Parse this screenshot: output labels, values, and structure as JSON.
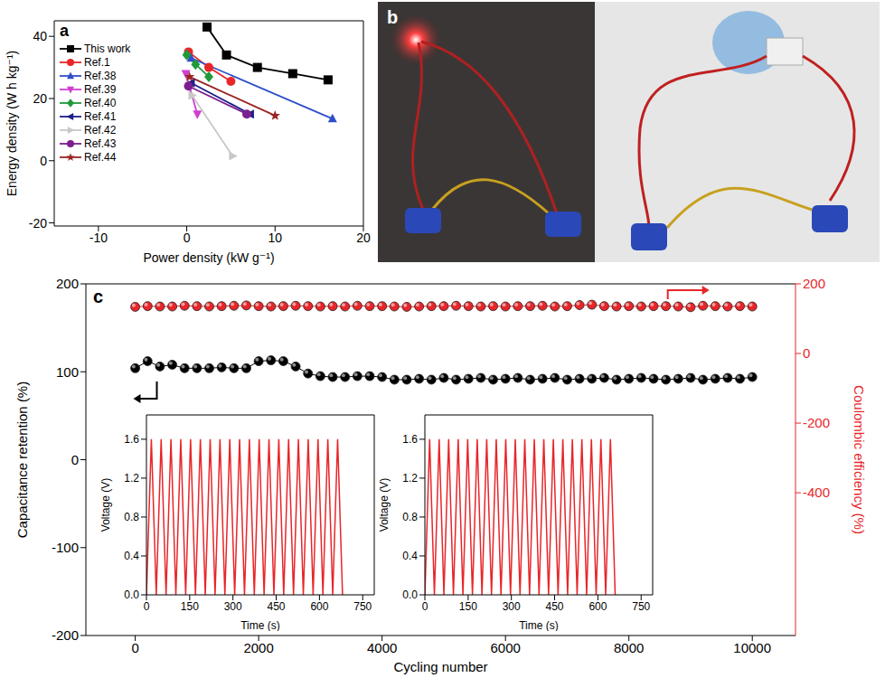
{
  "chart_data": [
    {
      "type": "line",
      "panel": "a",
      "x_label": "Power density (kW g⁻¹)",
      "y_label": "Energy density (W h kg⁻¹)",
      "xlim": [
        -15,
        20
      ],
      "xticks": [
        -10,
        0,
        10,
        20
      ],
      "ylim": [
        -21,
        45
      ],
      "yticks": [
        -20,
        0,
        20,
        40
      ],
      "legend": "upper left",
      "series": [
        {
          "name": "This work",
          "color": "#000000",
          "marker": "square",
          "x": [
            2.3,
            4.5,
            8,
            12,
            16
          ],
          "values": [
            43,
            34,
            30,
            28,
            26
          ]
        },
        {
          "name": "Ref.1",
          "color": "#e8262a",
          "marker": "circle",
          "x": [
            0.2,
            2.5,
            5
          ],
          "values": [
            35,
            30,
            25.5
          ]
        },
        {
          "name": "Ref.38",
          "color": "#2e4fc9",
          "marker": "triangle",
          "x": [
            0.5,
            16.5
          ],
          "values": [
            33,
            13.5
          ]
        },
        {
          "name": "Ref.39",
          "color": "#d03fd0",
          "marker": "triangle_down",
          "x": [
            -0.1,
            0.3,
            1.2
          ],
          "values": [
            28,
            24,
            15
          ]
        },
        {
          "name": "Ref.40",
          "color": "#1f9a3a",
          "marker": "diamond",
          "x": [
            0,
            1,
            2.5
          ],
          "values": [
            34,
            31,
            27
          ]
        },
        {
          "name": "Ref.41",
          "color": "#1b1f8a",
          "marker": "triangle_left",
          "x": [
            0.5,
            7.2
          ],
          "values": [
            25,
            15
          ]
        },
        {
          "name": "Ref.42",
          "color": "#c8c8c8",
          "marker": "triangle_right",
          "x": [
            0.6,
            5.2
          ],
          "values": [
            21,
            1.5
          ]
        },
        {
          "name": "Ref.43",
          "color": "#7b1f8e",
          "marker": "circle",
          "x": [
            0.2,
            6.8
          ],
          "values": [
            24,
            15
          ]
        },
        {
          "name": "Ref.44",
          "color": "#9b2424",
          "marker": "star",
          "x": [
            0.3,
            10
          ],
          "values": [
            27,
            14.5
          ]
        }
      ]
    },
    {
      "type": "image",
      "panel": "b"
    },
    {
      "type": "line",
      "panel": "c",
      "x_label": "Cycling number",
      "y_label": "Capacitance retention (%)",
      "y2_label": "Coulombic efficiency (%)",
      "xlim": [
        -800,
        10700
      ],
      "xticks": [
        0,
        2000,
        4000,
        6000,
        8000,
        10000
      ],
      "ylim": [
        -200,
        200
      ],
      "yticks": [
        -200,
        -100,
        0,
        100,
        200
      ],
      "y2lim": [
        -810,
        200
      ],
      "y2ticks": [
        -400,
        -200,
        0,
        200
      ],
      "x": [
        0,
        200,
        400,
        600,
        800,
        1000,
        1200,
        1400,
        1600,
        1800,
        2000,
        2200,
        2400,
        2600,
        2800,
        3000,
        3200,
        3400,
        3600,
        3800,
        4000,
        4200,
        4400,
        4600,
        4800,
        5000,
        5200,
        5400,
        5600,
        5800,
        6000,
        6200,
        6400,
        6600,
        6800,
        7000,
        7200,
        7400,
        7600,
        7800,
        8000,
        8200,
        8400,
        8600,
        8800,
        9000,
        9200,
        9400,
        9600,
        9800,
        10000
      ],
      "series": [
        {
          "color": "#000000",
          "marker": "circle",
          "values": [
            104,
            112,
            106,
            108,
            104,
            104,
            104,
            105,
            104,
            104,
            112,
            113,
            112,
            106,
            98,
            95,
            94,
            94,
            95,
            95,
            94,
            91,
            91,
            92,
            91,
            93,
            91,
            92,
            93,
            91,
            92,
            93,
            91,
            92,
            93,
            91,
            92,
            92,
            93,
            91,
            92,
            93,
            92,
            91,
            92,
            93,
            91,
            92,
            93,
            92,
            94
          ]
        },
        {
          "color": "#e8262a",
          "marker": "circle",
          "axis": "y2",
          "values": [
            134,
            136,
            135,
            135,
            137,
            136,
            135,
            136,
            137,
            138,
            136,
            135,
            136,
            137,
            136,
            135,
            136,
            135,
            137,
            136,
            136,
            135,
            134,
            135,
            136,
            136,
            137,
            136,
            135,
            136,
            135,
            136,
            136,
            137,
            135,
            136,
            139,
            140,
            136,
            135,
            136,
            135,
            136,
            136,
            135,
            133,
            137,
            136,
            135,
            136,
            135
          ]
        }
      ]
    },
    {
      "type": "line",
      "x_label": "Time (s)",
      "y_label": "Voltage (V)",
      "xlim": [
        0,
        790
      ],
      "xticks": [
        0,
        150,
        300,
        450,
        600,
        750
      ],
      "ylim": [
        0,
        1.85
      ],
      "yticks": [
        {
          "value": 0,
          "label": "0.0"
        },
        0.4,
        0.8,
        1.2,
        1.6
      ],
      "series": [
        {
          "color": "#e8262a",
          "x": [
            0,
            17,
            34,
            51,
            68,
            85,
            102,
            119,
            136,
            153,
            170,
            187,
            204,
            221,
            238,
            255,
            272,
            289,
            306,
            323,
            340,
            357,
            374,
            391,
            408,
            425,
            442,
            459,
            476,
            493,
            510,
            527,
            544,
            561,
            578,
            595,
            612,
            629,
            646,
            663,
            680
          ],
          "values": [
            0,
            1.6,
            0,
            1.6,
            0,
            1.6,
            0,
            1.6,
            0,
            1.6,
            0,
            1.6,
            0,
            1.6,
            0,
            1.6,
            0,
            1.6,
            0,
            1.6,
            0,
            1.6,
            0,
            1.6,
            0,
            1.6,
            0,
            1.6,
            0,
            1.6,
            0,
            1.6,
            0,
            1.6,
            0,
            1.6,
            0,
            1.6,
            0,
            1.6,
            0
          ]
        }
      ]
    },
    {
      "type": "line",
      "x_label": "Time (s)",
      "y_label": "Voltage (V)",
      "xlim": [
        0,
        790
      ],
      "xticks": [
        0,
        150,
        300,
        450,
        600,
        750
      ],
      "ylim": [
        0,
        1.85
      ],
      "yticks": [
        {
          "value": 0,
          "label": "0.0"
        },
        0.4,
        0.8,
        1.2,
        1.6
      ],
      "series": [
        {
          "color": "#e8262a",
          "x": [
            0,
            16.5,
            33,
            49.5,
            66,
            82.5,
            99,
            115.5,
            132,
            148.5,
            165,
            181.5,
            198,
            214.5,
            231,
            247.5,
            264,
            280.5,
            297,
            313.5,
            330,
            346.5,
            363,
            379.5,
            396,
            412.5,
            429,
            445.5,
            462,
            478.5,
            495,
            511.5,
            528,
            544.5,
            561,
            577.5,
            594,
            610.5,
            627,
            643.5,
            660
          ],
          "values": [
            0,
            1.6,
            0,
            1.6,
            0,
            1.6,
            0,
            1.6,
            0,
            1.6,
            0,
            1.6,
            0,
            1.6,
            0,
            1.6,
            0,
            1.6,
            0,
            1.6,
            0,
            1.6,
            0,
            1.6,
            0,
            1.6,
            0,
            1.6,
            0,
            1.6,
            0,
            1.6,
            0,
            1.6,
            0,
            1.6,
            0,
            1.6,
            0,
            1.6,
            0
          ]
        }
      ]
    }
  ]
}
